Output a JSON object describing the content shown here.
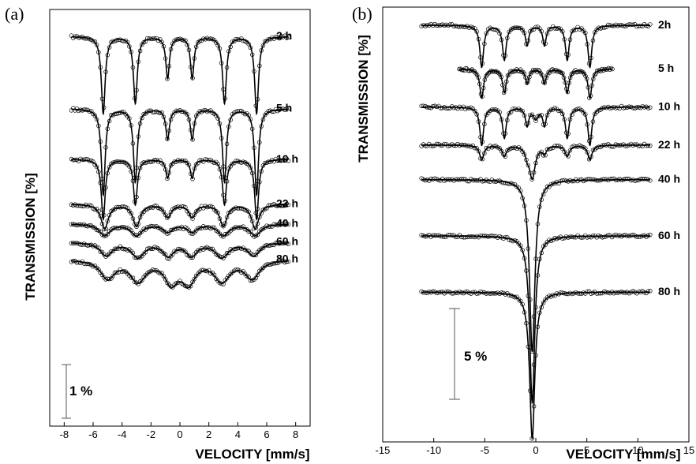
{
  "chart_data": [
    {
      "id": "a",
      "panel_label": "(a)",
      "type": "line",
      "xlabel": "VELOCITY [mm/s]",
      "ylabel": "TRANSMISSION [%]",
      "xlim": [
        -9,
        9
      ],
      "xticks": [
        -8,
        -6,
        -4,
        -2,
        0,
        2,
        4,
        6,
        8
      ],
      "x_range": [
        -7.5,
        7.5
      ],
      "scale_bar": {
        "label": "1 %",
        "value_percent": 1
      },
      "series": [
        {
          "name": "2 h",
          "baseline": 0.0,
          "lines": [
            {
              "center": -5.3,
              "depth": 1.48,
              "width": 0.16
            },
            {
              "center": -3.08,
              "depth": 1.28,
              "width": 0.16
            },
            {
              "center": -0.85,
              "depth": 0.8,
              "width": 0.15
            },
            {
              "center": 0.85,
              "depth": 0.8,
              "width": 0.15
            },
            {
              "center": 3.08,
              "depth": 1.28,
              "width": 0.16
            },
            {
              "center": 5.3,
              "depth": 1.48,
              "width": 0.16
            }
          ]
        },
        {
          "name": "5 h",
          "baseline": 1.39,
          "lines": [
            {
              "center": -5.3,
              "depth": 1.65,
              "width": 0.16
            },
            {
              "center": -3.08,
              "depth": 1.4,
              "width": 0.16
            },
            {
              "center": -0.85,
              "depth": 0.58,
              "width": 0.15
            },
            {
              "center": 0.85,
              "depth": 0.58,
              "width": 0.15
            },
            {
              "center": 3.08,
              "depth": 1.4,
              "width": 0.16
            },
            {
              "center": 5.3,
              "depth": 1.65,
              "width": 0.16
            }
          ]
        },
        {
          "name": "10 h",
          "baseline": 2.36,
          "lines": [
            {
              "center": -5.3,
              "depth": 1.15,
              "width": 0.16
            },
            {
              "center": -3.08,
              "depth": 0.87,
              "width": 0.16
            },
            {
              "center": -0.85,
              "depth": 0.36,
              "width": 0.15
            },
            {
              "center": 0.85,
              "depth": 0.36,
              "width": 0.15
            },
            {
              "center": 3.08,
              "depth": 0.87,
              "width": 0.16
            },
            {
              "center": 5.3,
              "depth": 1.15,
              "width": 0.16
            }
          ]
        },
        {
          "name": "22 h",
          "baseline": 3.22,
          "lines": [
            {
              "center": -5.2,
              "depth": 0.47,
              "width": 0.3
            },
            {
              "center": -3.0,
              "depth": 0.42,
              "width": 0.3
            },
            {
              "center": -0.85,
              "depth": 0.25,
              "width": 0.28
            },
            {
              "center": 0.85,
              "depth": 0.25,
              "width": 0.28
            },
            {
              "center": 3.0,
              "depth": 0.42,
              "width": 0.3
            },
            {
              "center": 5.2,
              "depth": 0.47,
              "width": 0.3
            }
          ]
        },
        {
          "name": "40 h",
          "baseline": 3.6,
          "lines": [
            {
              "center": -5.2,
              "depth": 0.22,
              "width": 0.45
            },
            {
              "center": -3.0,
              "depth": 0.22,
              "width": 0.45
            },
            {
              "center": -0.85,
              "depth": 0.15,
              "width": 0.4
            },
            {
              "center": 0.85,
              "depth": 0.15,
              "width": 0.4
            },
            {
              "center": 3.0,
              "depth": 0.22,
              "width": 0.45
            },
            {
              "center": 5.2,
              "depth": 0.22,
              "width": 0.45
            }
          ]
        },
        {
          "name": "60 h",
          "baseline": 3.95,
          "lines": [
            {
              "center": -5.1,
              "depth": 0.25,
              "width": 0.5
            },
            {
              "center": -2.9,
              "depth": 0.28,
              "width": 0.55
            },
            {
              "center": -0.8,
              "depth": 0.25,
              "width": 0.45
            },
            {
              "center": 0.8,
              "depth": 0.25,
              "width": 0.45
            },
            {
              "center": 2.9,
              "depth": 0.28,
              "width": 0.55
            },
            {
              "center": 5.1,
              "depth": 0.25,
              "width": 0.5
            }
          ]
        },
        {
          "name": "80 h",
          "baseline": 4.28,
          "lines": [
            {
              "center": -5.0,
              "depth": 0.35,
              "width": 0.6
            },
            {
              "center": -2.9,
              "depth": 0.4,
              "width": 0.65
            },
            {
              "center": -0.6,
              "depth": 0.42,
              "width": 0.55
            },
            {
              "center": 0.6,
              "depth": 0.42,
              "width": 0.55
            },
            {
              "center": 2.9,
              "depth": 0.4,
              "width": 0.65
            },
            {
              "center": 5.0,
              "depth": 0.35,
              "width": 0.6
            }
          ]
        }
      ]
    },
    {
      "id": "b",
      "panel_label": "(b)",
      "type": "line",
      "xlabel": "VELOCITY [mm/s]",
      "ylabel": "TRANSMISSION [%]",
      "xlim": [
        -15,
        15
      ],
      "xticks": [
        -15,
        -10,
        -5,
        0,
        5,
        10,
        15
      ],
      "scale_bar": {
        "label": "5 %",
        "value_percent": 5
      },
      "series": [
        {
          "name": "2h",
          "baseline": 0.0,
          "x_range": [
            -11.2,
            11.2
          ],
          "lines": [
            {
              "center": -5.3,
              "depth": 2.3,
              "width": 0.22
            },
            {
              "center": -3.08,
              "depth": 1.9,
              "width": 0.22
            },
            {
              "center": -0.85,
              "depth": 1.1,
              "width": 0.2
            },
            {
              "center": 0.85,
              "depth": 1.1,
              "width": 0.2
            },
            {
              "center": 3.08,
              "depth": 1.9,
              "width": 0.22
            },
            {
              "center": 5.3,
              "depth": 2.3,
              "width": 0.22
            }
          ]
        },
        {
          "name": "5 h",
          "baseline": 2.4,
          "x_range": [
            -7.5,
            7.5
          ],
          "lines": [
            {
              "center": -5.3,
              "depth": 1.6,
              "width": 0.22
            },
            {
              "center": -3.08,
              "depth": 1.3,
              "width": 0.22
            },
            {
              "center": -0.85,
              "depth": 0.8,
              "width": 0.2
            },
            {
              "center": 0.85,
              "depth": 0.8,
              "width": 0.2
            },
            {
              "center": 3.08,
              "depth": 1.3,
              "width": 0.22
            },
            {
              "center": 5.3,
              "depth": 1.6,
              "width": 0.22
            }
          ]
        },
        {
          "name": "10 h",
          "baseline": 4.5,
          "x_range": [
            -11.2,
            11.2
          ],
          "lines": [
            {
              "center": -5.3,
              "depth": 2.1,
              "width": 0.22
            },
            {
              "center": -3.08,
              "depth": 1.7,
              "width": 0.22
            },
            {
              "center": -0.85,
              "depth": 1.0,
              "width": 0.2
            },
            {
              "center": 0.0,
              "depth": 0.6,
              "width": 0.3
            },
            {
              "center": 0.85,
              "depth": 1.0,
              "width": 0.2
            },
            {
              "center": 3.08,
              "depth": 1.7,
              "width": 0.22
            },
            {
              "center": 5.3,
              "depth": 2.1,
              "width": 0.22
            }
          ]
        },
        {
          "name": "22 h",
          "baseline": 6.6,
          "x_range": [
            -11.2,
            11.2
          ],
          "lines": [
            {
              "center": -5.3,
              "depth": 0.8,
              "width": 0.25
            },
            {
              "center": -3.08,
              "depth": 0.6,
              "width": 0.25
            },
            {
              "center": -0.85,
              "depth": 0.4,
              "width": 0.22
            },
            {
              "center": -0.35,
              "depth": 1.8,
              "width": 0.35
            },
            {
              "center": 0.85,
              "depth": 0.4,
              "width": 0.22
            },
            {
              "center": 3.08,
              "depth": 0.6,
              "width": 0.25
            },
            {
              "center": 5.3,
              "depth": 0.8,
              "width": 0.25
            }
          ]
        },
        {
          "name": "40 h",
          "baseline": 8.5,
          "x_range": [
            -11.2,
            11.2
          ],
          "lines": [
            {
              "center": -0.35,
              "depth": 9.5,
              "width": 0.32
            }
          ]
        },
        {
          "name": "60 h",
          "baseline": 11.6,
          "x_range": [
            -11.2,
            11.2
          ],
          "lines": [
            {
              "center": -0.35,
              "depth": 9.2,
              "width": 0.3
            }
          ]
        },
        {
          "name": "80 h",
          "baseline": 14.7,
          "x_range": [
            -11.2,
            11.2
          ],
          "lines": [
            {
              "center": -0.35,
              "depth": 8.1,
              "width": 0.3
            }
          ]
        }
      ]
    }
  ]
}
